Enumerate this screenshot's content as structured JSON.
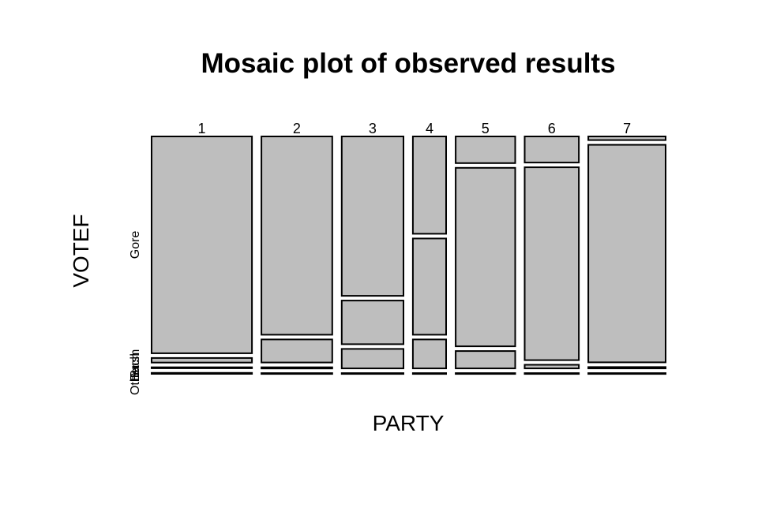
{
  "chart_data": {
    "type": "mosaic",
    "title": "Mosaic plot of observed results",
    "xlabel": "PARTY",
    "ylabel": "VOTEF",
    "x_categories": [
      "1",
      "2",
      "3",
      "4",
      "5",
      "6",
      "7"
    ],
    "x_proportions": [
      0.187,
      0.132,
      0.115,
      0.062,
      0.111,
      0.101,
      0.144
    ],
    "y_categories": [
      "Gore",
      "Bush",
      "Other",
      "Buch"
    ],
    "y_axis_label_text": [
      "Gore",
      "Bush",
      "Other",
      "Buch"
    ],
    "conditional_proportions": [
      [
        0.945,
        0.02,
        0.004,
        0.004
      ],
      [
        0.86,
        0.1,
        0.005,
        0.003
      ],
      [
        0.695,
        0.19,
        0.085,
        0.003
      ],
      [
        0.42,
        0.415,
        0.125,
        0.003
      ],
      [
        0.115,
        0.77,
        0.075,
        0.003
      ],
      [
        0.115,
        0.85,
        0.016,
        0.003
      ],
      [
        0.016,
        0.96,
        0.006,
        0.003
      ]
    ]
  }
}
